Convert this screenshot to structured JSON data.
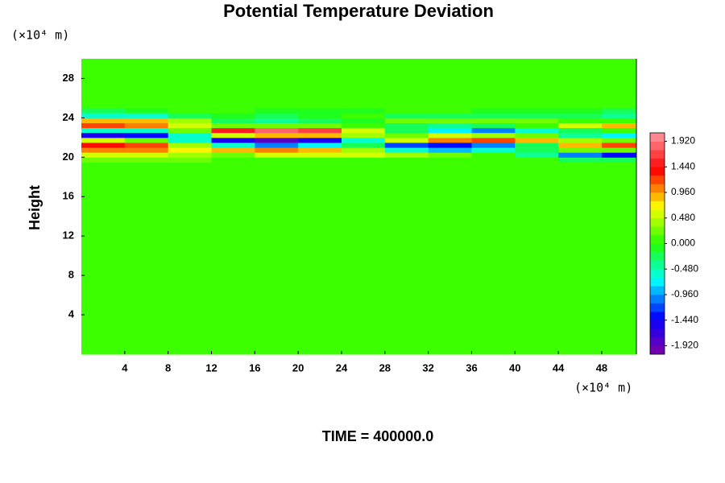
{
  "chart_data": {
    "type": "heatmap",
    "title": "Potential Temperature Deviation",
    "ylabel": "Height",
    "y_unit": "(×10⁴ m)",
    "x_unit": "(×10⁴ m)",
    "footer": "TIME = 400000.0",
    "xlim": [
      0,
      51.2
    ],
    "ylim": [
      0,
      30
    ],
    "xticks": [
      4,
      8,
      12,
      16,
      20,
      24,
      28,
      32,
      36,
      40,
      44,
      48
    ],
    "yticks": [
      4,
      8,
      12,
      16,
      20,
      24,
      28
    ],
    "x_edges": [
      0,
      4,
      8,
      12,
      16,
      20,
      24,
      28,
      32,
      36,
      40,
      44,
      48,
      51.2
    ],
    "y_edges": [
      0,
      19.5,
      20,
      20.5,
      21,
      21.5,
      22,
      22.5,
      23,
      23.5,
      24,
      24.5,
      25,
      30
    ],
    "z": [
      [
        0,
        0,
        0,
        0,
        0,
        0,
        0,
        0,
        0,
        0,
        0,
        0,
        0
      ],
      [
        0.3,
        0.3,
        0.2,
        0.1,
        0,
        0,
        0,
        0,
        0,
        0,
        0,
        -0.2,
        -0.3
      ],
      [
        0.6,
        0.5,
        0.4,
        0.3,
        0.5,
        0.6,
        0.5,
        0.4,
        0.2,
        0,
        -0.4,
        -1.0,
        -1.3
      ],
      [
        1.1,
        1.0,
        0.7,
        0.9,
        1.0,
        0.9,
        0.4,
        -0.5,
        -0.9,
        -0.6,
        -0.2,
        0.2,
        0.3
      ],
      [
        1.3,
        1.2,
        0.4,
        -0.6,
        -1.0,
        -0.8,
        -0.3,
        -1.2,
        -1.4,
        -1.0,
        -0.3,
        0.8,
        1.2
      ],
      [
        0.6,
        0.3,
        -0.6,
        -1.6,
        -1.8,
        -1.6,
        -0.6,
        0.6,
        1.1,
        1.2,
        0.8,
        0.4,
        0.3
      ],
      [
        -1.5,
        -1.4,
        -0.6,
        0.6,
        0.9,
        0.8,
        0.4,
        0.3,
        0.5,
        0.4,
        0.2,
        -0.4,
        -0.8
      ],
      [
        -0.5,
        -0.6,
        0.2,
        1.5,
        1.9,
        1.7,
        0.6,
        -0.3,
        -0.8,
        -1.0,
        -0.6,
        -0.2,
        0
      ],
      [
        1.2,
        1.1,
        0.6,
        0.2,
        0.3,
        0.2,
        0,
        -0.3,
        -0.4,
        -0.3,
        0,
        0.5,
        0.9
      ],
      [
        0.9,
        0.8,
        0.4,
        -0.3,
        -0.4,
        -0.3,
        -0.1,
        0.2,
        0.3,
        0.3,
        0.2,
        0.1,
        0.1
      ],
      [
        -0.5,
        -0.5,
        -0.3,
        -0.1,
        -0.2,
        -0.1,
        0,
        -0.2,
        -0.3,
        -0.3,
        -0.2,
        -0.3,
        -0.4
      ],
      [
        -0.2,
        -0.1,
        0,
        0,
        -0.1,
        -0.1,
        -0.1,
        0,
        0,
        -0.1,
        -0.1,
        -0.1,
        -0.2
      ],
      [
        0,
        0,
        0,
        0,
        0,
        0,
        0,
        0,
        0,
        0,
        0,
        0,
        0
      ]
    ],
    "zlim": [
      -2.08,
      2.08
    ],
    "contour_interval": 0.16,
    "colormap": [
      "#8000a8",
      "#0000ff",
      "#00ffff",
      "#22ff00",
      "#ffff00",
      "#ff0000",
      "#ff9aa0"
    ],
    "zticks": [
      {
        "value": 1.92,
        "label": "1.920"
      },
      {
        "value": 1.44,
        "label": "1.440"
      },
      {
        "value": 0.96,
        "label": "0.960"
      },
      {
        "value": 0.48,
        "label": "0.480"
      },
      {
        "value": 0,
        "label": "0.000"
      },
      {
        "value": -0.48,
        "label": "-0.480"
      },
      {
        "value": -0.96,
        "label": "-0.960"
      },
      {
        "value": -1.44,
        "label": "-1.440"
      },
      {
        "value": -1.92,
        "label": "-1.920"
      }
    ]
  }
}
